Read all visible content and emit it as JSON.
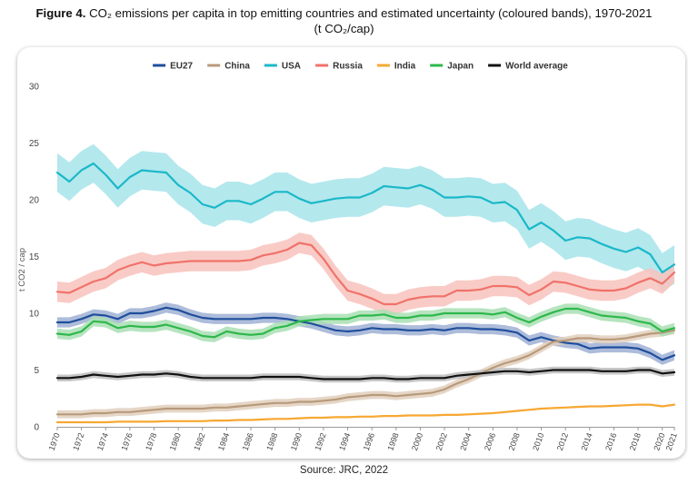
{
  "figure": {
    "label": "Figure 4.",
    "title_line1": "CO₂ emissions per capita in top emitting countries and estimated uncertainty (coloured bands), 1970-2021",
    "title_line2": "(t CO₂/cap)",
    "source": "Source: JRC, 2022"
  },
  "chart_data": {
    "type": "line",
    "title": "CO₂ emissions per capita in top emitting countries and estimated uncertainty (coloured bands), 1970-2021",
    "xlabel": "",
    "ylabel": "t CO2 / cap",
    "ylim": [
      0,
      30
    ],
    "xlim": [
      1970,
      2021
    ],
    "yticks": [
      0,
      5,
      10,
      15,
      20,
      25,
      30
    ],
    "xticks": [
      1970,
      1972,
      1974,
      1976,
      1978,
      1980,
      1982,
      1984,
      1986,
      1988,
      1990,
      1992,
      1994,
      1996,
      1998,
      2000,
      2002,
      2004,
      2006,
      2008,
      2010,
      2012,
      2014,
      2016,
      2018,
      2020,
      2021
    ],
    "legend_position": "top",
    "grid": false,
    "x": [
      1970,
      1971,
      1972,
      1973,
      1974,
      1975,
      1976,
      1977,
      1978,
      1979,
      1980,
      1981,
      1982,
      1983,
      1984,
      1985,
      1986,
      1987,
      1988,
      1989,
      1990,
      1991,
      1992,
      1993,
      1994,
      1995,
      1996,
      1997,
      1998,
      1999,
      2000,
      2001,
      2002,
      2003,
      2004,
      2005,
      2006,
      2007,
      2008,
      2009,
      2010,
      2011,
      2012,
      2013,
      2014,
      2015,
      2016,
      2017,
      2018,
      2019,
      2020,
      2021
    ],
    "series": [
      {
        "name": "EU27",
        "color": "#1f4e9c",
        "band_color": "#9fb0d4",
        "band_width": 0.45,
        "values": [
          9.2,
          9.2,
          9.5,
          9.9,
          9.8,
          9.5,
          10.0,
          10.0,
          10.2,
          10.5,
          10.3,
          9.9,
          9.6,
          9.5,
          9.5,
          9.5,
          9.5,
          9.6,
          9.6,
          9.5,
          9.3,
          9.1,
          8.8,
          8.5,
          8.4,
          8.5,
          8.7,
          8.6,
          8.6,
          8.5,
          8.5,
          8.6,
          8.5,
          8.7,
          8.7,
          8.6,
          8.6,
          8.5,
          8.3,
          7.6,
          7.9,
          7.6,
          7.4,
          7.3,
          6.9,
          7.0,
          7.0,
          7.0,
          6.9,
          6.5,
          5.9,
          6.3
        ]
      },
      {
        "name": "China",
        "color": "#b89a7a",
        "band_color": "#e0cfbd",
        "band_width": 0.35,
        "values": [
          1.1,
          1.1,
          1.1,
          1.2,
          1.2,
          1.3,
          1.3,
          1.4,
          1.5,
          1.6,
          1.6,
          1.6,
          1.6,
          1.7,
          1.7,
          1.8,
          1.9,
          2.0,
          2.1,
          2.1,
          2.2,
          2.2,
          2.3,
          2.4,
          2.6,
          2.7,
          2.8,
          2.8,
          2.7,
          2.8,
          2.9,
          3.0,
          3.3,
          3.8,
          4.2,
          4.7,
          5.2,
          5.6,
          5.9,
          6.3,
          6.9,
          7.5,
          7.6,
          7.8,
          7.8,
          7.7,
          7.7,
          7.8,
          8.0,
          8.2,
          8.3,
          8.5
        ]
      },
      {
        "name": "USA",
        "color": "#1ab8c8",
        "band_color": "#a6e4ea",
        "band_width": 1.7,
        "values": [
          22.4,
          21.6,
          22.6,
          23.2,
          22.2,
          21.0,
          22.0,
          22.6,
          22.5,
          22.4,
          21.3,
          20.6,
          19.6,
          19.3,
          19.9,
          19.9,
          19.6,
          20.1,
          20.7,
          20.7,
          20.1,
          19.7,
          19.9,
          20.1,
          20.2,
          20.2,
          20.6,
          21.2,
          21.1,
          21.0,
          21.3,
          20.9,
          20.2,
          20.2,
          20.3,
          20.2,
          19.7,
          19.8,
          19.1,
          17.4,
          18.0,
          17.3,
          16.4,
          16.7,
          16.6,
          16.1,
          15.7,
          15.4,
          15.8,
          15.2,
          13.6,
          14.3
        ]
      },
      {
        "name": "Russia",
        "color": "#f0726a",
        "band_color": "#f8c2bc",
        "band_width": 0.9,
        "values": [
          11.9,
          11.8,
          12.3,
          12.8,
          13.1,
          13.8,
          14.2,
          14.5,
          14.2,
          14.4,
          14.5,
          14.6,
          14.6,
          14.6,
          14.6,
          14.6,
          14.7,
          15.1,
          15.3,
          15.6,
          16.2,
          16.0,
          14.8,
          13.3,
          12.0,
          11.7,
          11.3,
          10.8,
          10.8,
          11.2,
          11.4,
          11.5,
          11.5,
          12.0,
          12.0,
          12.1,
          12.4,
          12.4,
          12.3,
          11.6,
          12.1,
          12.8,
          12.7,
          12.4,
          12.1,
          12.0,
          12.0,
          12.2,
          12.7,
          13.1,
          12.6,
          13.6
        ]
      },
      {
        "name": "India",
        "color": "#f7a833",
        "band_color": "#fbd9a4",
        "band_width": 0.08,
        "values": [
          0.4,
          0.4,
          0.4,
          0.4,
          0.4,
          0.45,
          0.45,
          0.45,
          0.45,
          0.5,
          0.5,
          0.5,
          0.5,
          0.55,
          0.55,
          0.6,
          0.6,
          0.65,
          0.7,
          0.7,
          0.75,
          0.8,
          0.8,
          0.85,
          0.85,
          0.9,
          0.9,
          0.95,
          0.95,
          1.0,
          1.0,
          1.0,
          1.05,
          1.05,
          1.1,
          1.15,
          1.2,
          1.3,
          1.4,
          1.5,
          1.6,
          1.65,
          1.7,
          1.75,
          1.8,
          1.8,
          1.85,
          1.9,
          1.95,
          1.95,
          1.8,
          1.95
        ]
      },
      {
        "name": "Japan",
        "color": "#2db84a",
        "band_color": "#a9dfb4",
        "band_width": 0.45,
        "values": [
          8.2,
          8.1,
          8.4,
          9.3,
          9.2,
          8.7,
          8.9,
          8.8,
          8.8,
          9.0,
          8.7,
          8.4,
          8.0,
          7.9,
          8.4,
          8.2,
          8.1,
          8.2,
          8.7,
          8.9,
          9.3,
          9.4,
          9.5,
          9.5,
          9.5,
          9.8,
          9.8,
          9.9,
          9.6,
          9.6,
          9.8,
          9.8,
          10.0,
          10.0,
          10.0,
          10.0,
          9.9,
          10.1,
          9.6,
          9.2,
          9.7,
          10.1,
          10.4,
          10.4,
          10.1,
          9.8,
          9.7,
          9.6,
          9.3,
          9.1,
          8.4,
          8.7
        ]
      },
      {
        "name": "World average",
        "color": "#111111",
        "band_color": "#bdbdbd",
        "band_width": 0.3,
        "values": [
          4.3,
          4.3,
          4.4,
          4.6,
          4.5,
          4.4,
          4.5,
          4.6,
          4.6,
          4.7,
          4.6,
          4.4,
          4.3,
          4.3,
          4.3,
          4.3,
          4.3,
          4.4,
          4.4,
          4.4,
          4.4,
          4.3,
          4.2,
          4.2,
          4.2,
          4.2,
          4.3,
          4.3,
          4.2,
          4.2,
          4.3,
          4.3,
          4.3,
          4.5,
          4.6,
          4.7,
          4.8,
          4.9,
          4.9,
          4.8,
          4.9,
          5.0,
          5.0,
          5.0,
          5.0,
          4.9,
          4.9,
          4.9,
          5.0,
          5.0,
          4.7,
          4.8
        ]
      }
    ]
  }
}
